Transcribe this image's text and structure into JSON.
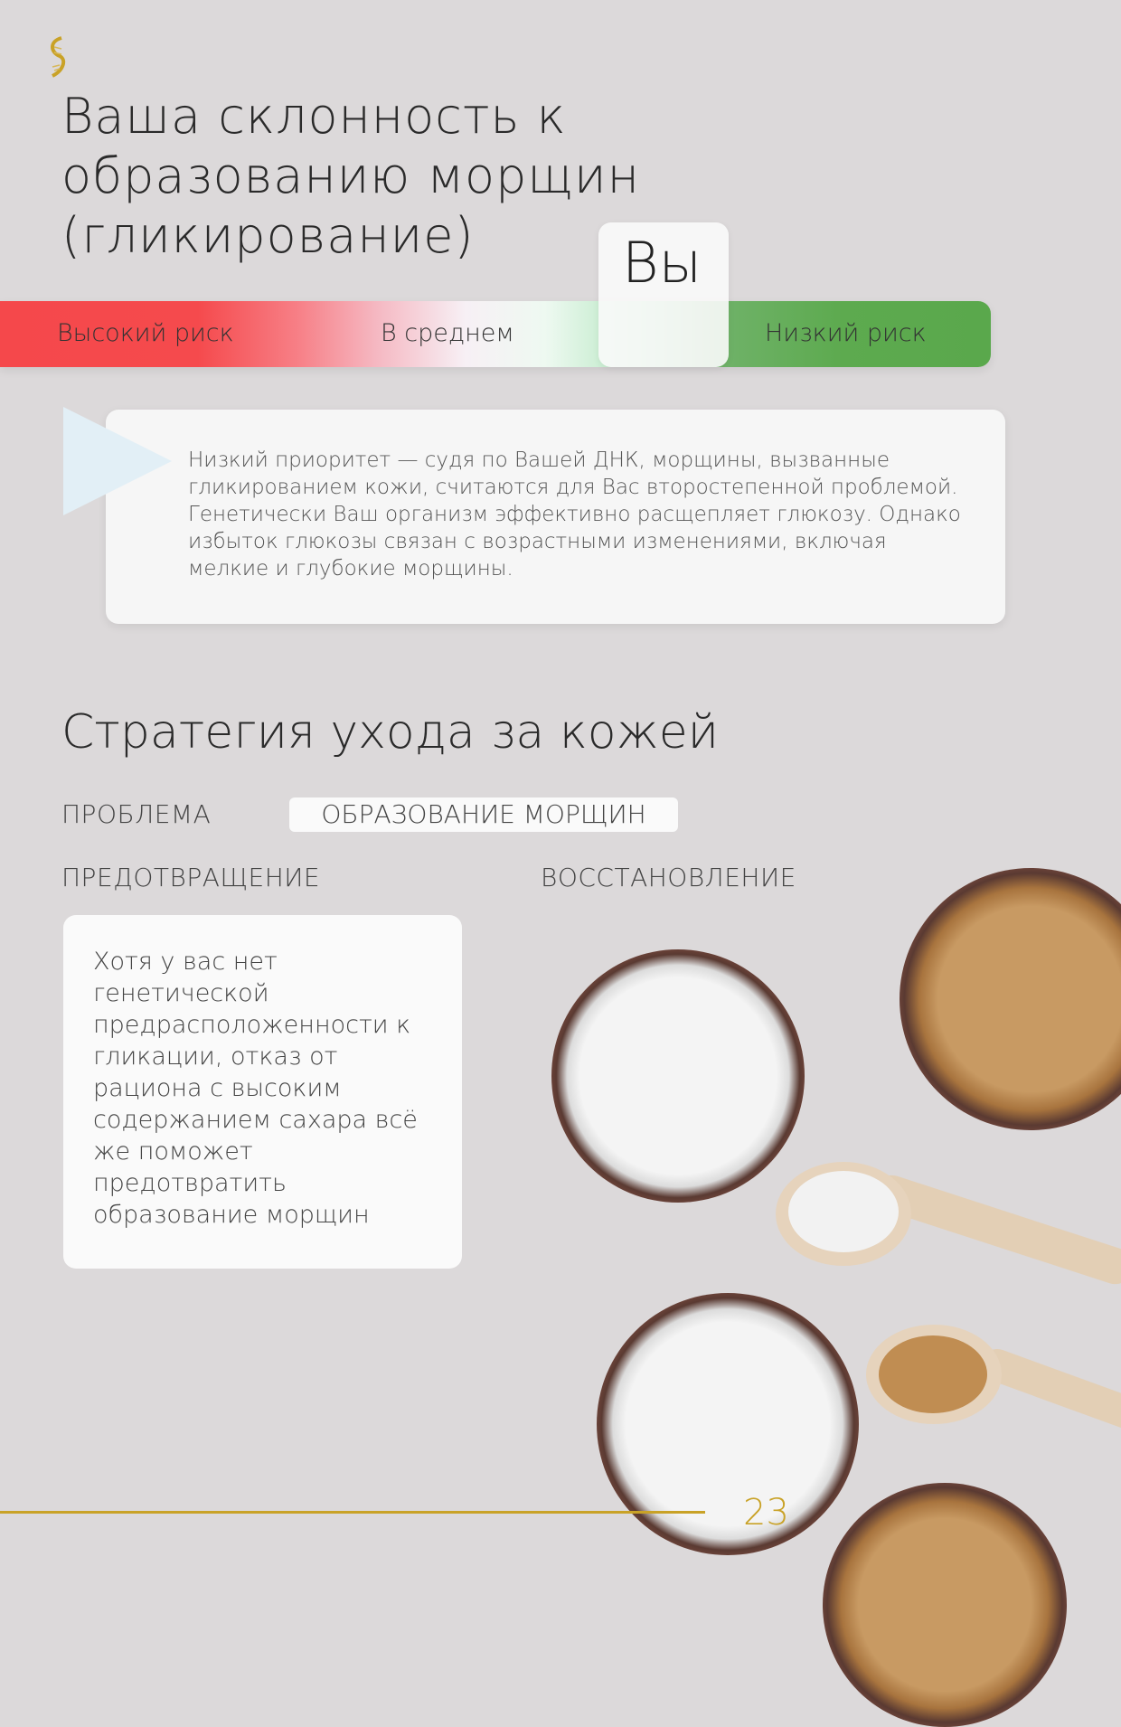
{
  "title": "Ваша склонность к образованию морщин (гликирование)",
  "scale": {
    "high": "Высокий риск",
    "average": "В среднем",
    "low": "Низкий риск",
    "you": "Вы",
    "you_level": "low"
  },
  "result_text": "Низкий приоритет — судя по Вашей ДНК, морщины, вызванные гликированием кожи, считаются для Вас второстепенной проблемой. Генетически Ваш организм эффективно расщепляет глюкозу. Однако избыток глюкозы связан с возрастными изменениями, включая мелкие и глубокие морщины.",
  "strategy": {
    "title": "Стратегия ухода за кожей",
    "problem_label": "ПРОБЛЕМА",
    "problem_value": "ОБРАЗОВАНИЕ МОРЩИН",
    "prevention_label": "ПРЕДОТВРАЩЕНИЕ",
    "recovery_label": "ВОССТАНОВЛЕНИЕ",
    "prevention_text": "Хотя у вас нет генетической предрасположенности к гликации, отказ от рациона с высоким содержанием сахара всё же поможет предотвратить образование морщин"
  },
  "colors": {
    "high": "#f5484b",
    "low": "#5aa84c",
    "accent": "#c9a227"
  },
  "page_number": "23"
}
